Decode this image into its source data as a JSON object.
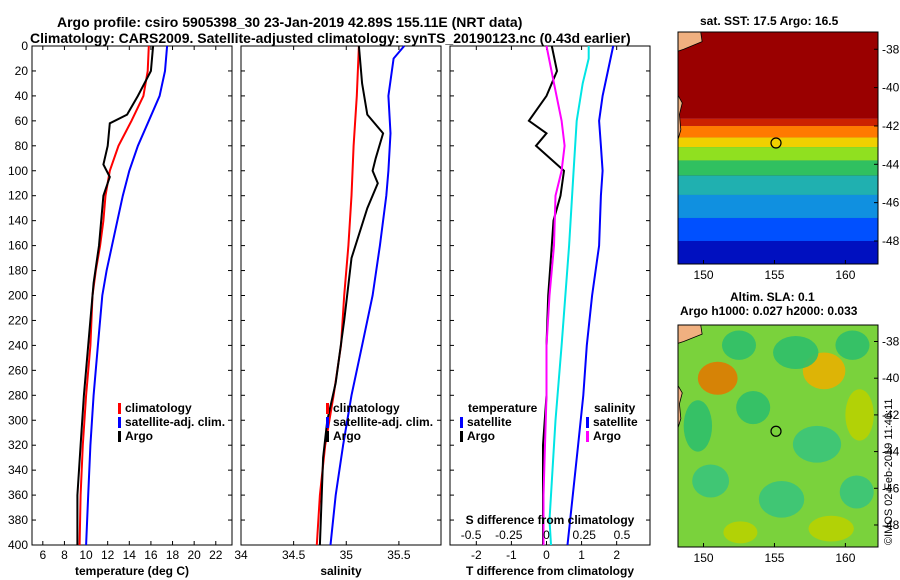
{
  "header": {
    "line1": "Argo profile: csiro 5905398_30 23-Jan-2019 42.89S 155.11E (NRT data)",
    "line2": "Climatology: CARS2009. Satellite-adjusted climatology: synTS_20190123.nc (0.43d earlier)"
  },
  "colors": {
    "climatology": "#ff0000",
    "satellite": "#0000ff",
    "argo": "#000000",
    "sat_salinity": "#00e5e5",
    "clim_salinity": "#ff00ff"
  },
  "chart_data": [
    {
      "type": "line",
      "title": "",
      "xlabel": "temperature (deg C)",
      "ylabel": "",
      "xlim": [
        5,
        23.5
      ],
      "ylim": [
        400,
        0
      ],
      "xticks": [
        "6",
        "8",
        "10",
        "12",
        "14",
        "16",
        "18",
        "20",
        "22"
      ],
      "yticks": [
        "0",
        "20",
        "40",
        "60",
        "80",
        "100",
        "120",
        "140",
        "160",
        "180",
        "200",
        "220",
        "240",
        "260",
        "280",
        "300",
        "320",
        "340",
        "360",
        "380",
        "400"
      ],
      "legend": [
        "climatology",
        "satellite-adj. clim.",
        "Argo"
      ],
      "series": [
        {
          "name": "climatology",
          "color": "#ff0000",
          "points": [
            [
              15.8,
              0
            ],
            [
              15.7,
              20
            ],
            [
              15.3,
              40
            ],
            [
              14.2,
              60
            ],
            [
              13.0,
              80
            ],
            [
              12.2,
              100
            ],
            [
              11.8,
              120
            ],
            [
              11.6,
              140
            ],
            [
              11.3,
              160
            ],
            [
              10.9,
              180
            ],
            [
              10.6,
              200
            ],
            [
              10.4,
              240
            ],
            [
              10.0,
              280
            ],
            [
              9.7,
              320
            ],
            [
              9.5,
              360
            ],
            [
              9.4,
              400
            ]
          ]
        },
        {
          "name": "satellite-adj. clim.",
          "color": "#0000ff",
          "points": [
            [
              17.5,
              0
            ],
            [
              17.3,
              20
            ],
            [
              16.8,
              40
            ],
            [
              15.8,
              60
            ],
            [
              14.8,
              80
            ],
            [
              14.0,
              100
            ],
            [
              13.4,
              120
            ],
            [
              12.9,
              140
            ],
            [
              12.4,
              160
            ],
            [
              11.9,
              180
            ],
            [
              11.5,
              200
            ],
            [
              11.1,
              240
            ],
            [
              10.7,
              280
            ],
            [
              10.4,
              320
            ],
            [
              10.2,
              360
            ],
            [
              10.0,
              400
            ]
          ]
        },
        {
          "name": "Argo",
          "color": "#000000",
          "points": [
            [
              16.2,
              0
            ],
            [
              16.0,
              20
            ],
            [
              14.8,
              40
            ],
            [
              13.8,
              55
            ],
            [
              12.2,
              62
            ],
            [
              12.0,
              80
            ],
            [
              11.6,
              95
            ],
            [
              12.2,
              105
            ],
            [
              11.6,
              120
            ],
            [
              11.2,
              160
            ],
            [
              10.7,
              190
            ],
            [
              10.2,
              240
            ],
            [
              9.8,
              280
            ],
            [
              9.5,
              320
            ],
            [
              9.2,
              360
            ],
            [
              9.2,
              400
            ]
          ]
        }
      ]
    },
    {
      "type": "line",
      "xlabel": "salinity",
      "xlim": [
        34,
        35.9
      ],
      "ylim": [
        400,
        0
      ],
      "xticks": [
        "34",
        "34.5",
        "35",
        "35.5"
      ],
      "legend": [
        "climatology",
        "satellite-adj. clim.",
        "Argo"
      ],
      "series": [
        {
          "name": "climatology",
          "color": "#ff0000",
          "points": [
            [
              35.12,
              0
            ],
            [
              35.1,
              40
            ],
            [
              35.07,
              80
            ],
            [
              35.05,
              120
            ],
            [
              35.02,
              160
            ],
            [
              34.98,
              200
            ],
            [
              34.95,
              240
            ],
            [
              34.88,
              280
            ],
            [
              34.8,
              320
            ],
            [
              34.75,
              360
            ],
            [
              34.72,
              400
            ]
          ]
        },
        {
          "name": "satellite-adj. clim.",
          "color": "#0000ff",
          "points": [
            [
              35.55,
              0
            ],
            [
              35.45,
              10
            ],
            [
              35.4,
              40
            ],
            [
              35.42,
              70
            ],
            [
              35.4,
              100
            ],
            [
              35.38,
              120
            ],
            [
              35.32,
              160
            ],
            [
              35.25,
              200
            ],
            [
              35.15,
              240
            ],
            [
              35.05,
              280
            ],
            [
              34.97,
              320
            ],
            [
              34.9,
              360
            ],
            [
              34.85,
              400
            ]
          ]
        },
        {
          "name": "Argo",
          "color": "#000000",
          "points": [
            [
              35.12,
              0
            ],
            [
              35.15,
              30
            ],
            [
              35.2,
              55
            ],
            [
              35.35,
              70
            ],
            [
              35.28,
              90
            ],
            [
              35.25,
              100
            ],
            [
              35.3,
              110
            ],
            [
              35.2,
              130
            ],
            [
              35.05,
              170
            ],
            [
              34.98,
              220
            ],
            [
              34.9,
              270
            ],
            [
              34.82,
              300
            ],
            [
              34.78,
              330
            ],
            [
              34.75,
              400
            ]
          ]
        }
      ]
    },
    {
      "type": "line",
      "xlabel": "T difference from climatology",
      "x2label": "S difference from climatology",
      "xlim": [
        -2.75,
        2.95
      ],
      "ylim": [
        400,
        0
      ],
      "xticks": [
        "-2",
        "-1",
        "0",
        "1",
        "2"
      ],
      "x2ticks": [
        "-0.5",
        "-0.25",
        "0",
        "0.25",
        "0.5"
      ],
      "legend_left_title": "temperature",
      "legend_right_title": "salinity",
      "legend": [
        "satellite",
        "Argo"
      ],
      "series": [
        {
          "name": "T satellite",
          "color": "#0000ff",
          "points": [
            [
              1.9,
              0
            ],
            [
              1.75,
              20
            ],
            [
              1.6,
              40
            ],
            [
              1.5,
              60
            ],
            [
              1.55,
              80
            ],
            [
              1.6,
              100
            ],
            [
              1.55,
              120
            ],
            [
              1.5,
              160
            ],
            [
              1.3,
              200
            ],
            [
              1.15,
              240
            ],
            [
              1.05,
              280
            ],
            [
              0.9,
              320
            ],
            [
              0.75,
              360
            ],
            [
              0.6,
              400
            ]
          ]
        },
        {
          "name": "T Argo",
          "color": "#000000",
          "points": [
            [
              0.15,
              0
            ],
            [
              0.3,
              20
            ],
            [
              0.0,
              40
            ],
            [
              -0.5,
              60
            ],
            [
              0.0,
              70
            ],
            [
              -0.3,
              80
            ],
            [
              0.5,
              100
            ],
            [
              0.4,
              120
            ],
            [
              0.2,
              140
            ],
            [
              0.15,
              160
            ],
            [
              0.1,
              180
            ],
            [
              0.05,
              200
            ],
            [
              0.0,
              240
            ],
            [
              0.0,
              280
            ],
            [
              -0.1,
              320
            ],
            [
              -0.1,
              360
            ],
            [
              -0.1,
              400
            ]
          ]
        },
        {
          "name": "S satellite",
          "color": "#00e5e5",
          "points": [
            [
              0.28,
              0
            ],
            [
              0.28,
              10
            ],
            [
              0.24,
              30
            ],
            [
              0.2,
              60
            ],
            [
              0.18,
              100
            ],
            [
              0.15,
              160
            ],
            [
              0.1,
              240
            ],
            [
              0.06,
              300
            ],
            [
              0.04,
              340
            ],
            [
              0.02,
              380
            ],
            [
              0.03,
              400
            ]
          ]
        },
        {
          "name": "S Argo",
          "color": "#ff00ff",
          "points": [
            [
              0.0,
              0
            ],
            [
              0.05,
              30
            ],
            [
              0.1,
              60
            ],
            [
              0.12,
              80
            ],
            [
              0.1,
              100
            ],
            [
              0.06,
              120
            ],
            [
              0.05,
              160
            ],
            [
              0.02,
              200
            ],
            [
              0.0,
              240
            ],
            [
              0.0,
              280
            ],
            [
              -0.01,
              320
            ],
            [
              -0.02,
              360
            ],
            [
              -0.02,
              400
            ]
          ]
        }
      ]
    }
  ],
  "sst_map": {
    "title": "sat. SST: 17.5 Argo: 16.5",
    "xticks": [
      "150",
      "155",
      "160"
    ],
    "yticks": [
      "-38",
      "-40",
      "-42",
      "-44",
      "-46",
      "-48"
    ],
    "marker": {
      "lon": 155.11,
      "lat": -42.89
    }
  },
  "sla_map": {
    "title_line1": "Altim. SLA: 0.1",
    "title_line2": "Argo h1000: 0.027 h2000: 0.033",
    "xticks": [
      "150",
      "155",
      "160"
    ],
    "yticks": [
      "-38",
      "-40",
      "-42",
      "-44",
      "-46",
      "-48"
    ],
    "marker": {
      "lon": 155.11,
      "lat": -42.89
    }
  },
  "credit": "©IMOS 02-Feb-2019 11:40:11"
}
